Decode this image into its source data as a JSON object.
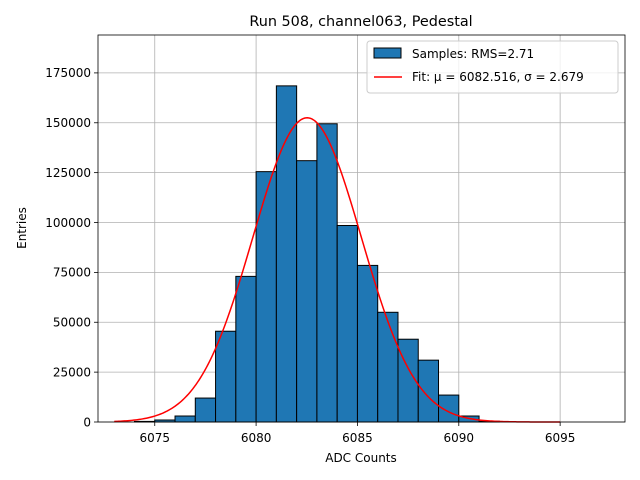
{
  "chart_data": {
    "type": "bar",
    "title": "Run 508, channel063, Pedestal",
    "xlabel": "ADC Counts",
    "ylabel": "Entries",
    "xlim": [
      6072.2,
      6098.2
    ],
    "ylim": [
      0,
      194000
    ],
    "xticks": [
      6075,
      6080,
      6085,
      6090,
      6095
    ],
    "yticks": [
      0,
      25000,
      50000,
      75000,
      100000,
      125000,
      150000,
      175000
    ],
    "grid": true,
    "legend_position": "top-right",
    "bin_width": 1,
    "bins": [
      {
        "left": 6074,
        "value": 300
      },
      {
        "left": 6075,
        "value": 1000
      },
      {
        "left": 6076,
        "value": 3000
      },
      {
        "left": 6077,
        "value": 12000
      },
      {
        "left": 6078,
        "value": 45500
      },
      {
        "left": 6079,
        "value": 73000
      },
      {
        "left": 6080,
        "value": 125500
      },
      {
        "left": 6081,
        "value": 168500
      },
      {
        "left": 6082,
        "value": 131000
      },
      {
        "left": 6083,
        "value": 149500
      },
      {
        "left": 6084,
        "value": 98500
      },
      {
        "left": 6085,
        "value": 78500
      },
      {
        "left": 6086,
        "value": 55000
      },
      {
        "left": 6087,
        "value": 41500
      },
      {
        "left": 6088,
        "value": 31000
      },
      {
        "left": 6089,
        "value": 13500
      },
      {
        "left": 6090,
        "value": 3000
      },
      {
        "left": 6091,
        "value": 400
      }
    ],
    "fit": {
      "mu": 6082.516,
      "sigma": 2.679,
      "amplitude": 152500,
      "x_range": [
        6073,
        6095
      ]
    },
    "series": [
      {
        "name": "Samples: RMS=2.71",
        "kind": "histogram",
        "color": "#1f77b4",
        "edgecolor": "#000000"
      },
      {
        "name": "Fit: μ = 6082.516, σ = 2.679",
        "kind": "line",
        "color": "#ff0000"
      }
    ]
  }
}
